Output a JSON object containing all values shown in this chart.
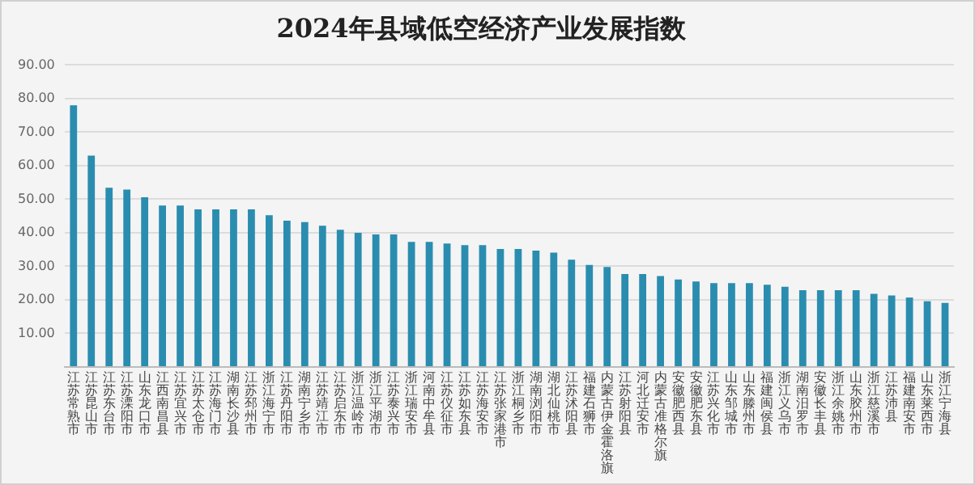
{
  "chart_data": {
    "type": "bar",
    "title": "2024年县域低空经济产业发展指数",
    "categories": [
      "江苏常熟市",
      "江苏昆山市",
      "江苏东台市",
      "江苏溧阳市",
      "山东龙口市",
      "江西南昌县",
      "江苏宜兴市",
      "江苏太仓市",
      "江苏海门市",
      "湖南长沙县",
      "江苏邳州市",
      "浙江海宁市",
      "江苏丹阳市",
      "湖南宁乡市",
      "江苏靖江市",
      "江苏启东市",
      "浙江温岭市",
      "浙江平湖市",
      "江苏泰兴市",
      "浙江瑞安市",
      "河南中牟县",
      "江苏仪征市",
      "江苏如东县",
      "江苏海安市",
      "江苏张家港市",
      "浙江桐乡市",
      "湖南浏阳市",
      "湖北仙桃市",
      "江苏沭阳县",
      "福建石狮市",
      "内蒙古伊金霍洛旗",
      "江苏射阳县",
      "河北迁安市",
      "内蒙古准格尔旗",
      "安徽肥西县",
      "安徽肥东县",
      "江苏兴化市",
      "山东邹城市",
      "山东滕州市",
      "福建闽侯县",
      "浙江义乌市",
      "湖南汨罗市",
      "安徽长丰县",
      "浙江余姚市",
      "山东胶州市",
      "浙江慈溪市",
      "江苏沛县",
      "福建南安市",
      "山东莱西市",
      "浙江宁海县"
    ],
    "values": [
      78.0,
      63.0,
      53.4,
      52.9,
      50.6,
      48.1,
      48.1,
      47.0,
      47.0,
      47.0,
      47.0,
      45.2,
      43.6,
      43.2,
      42.1,
      40.9,
      40.0,
      39.5,
      39.5,
      37.3,
      37.3,
      36.8,
      36.3,
      36.3,
      35.2,
      35.2,
      34.7,
      34.1,
      32.0,
      30.4,
      29.8,
      27.7,
      27.7,
      27.1,
      26.1,
      25.5,
      25.0,
      25.0,
      25.0,
      24.5,
      23.9,
      22.9,
      22.9,
      22.9,
      22.9,
      21.8,
      21.3,
      20.7,
      19.6,
      19.1
    ],
    "color": "#2a8db0",
    "ylim": [
      0,
      90
    ],
    "yticks": [
      {
        "value": 0,
        "label": null
      },
      {
        "value": 10,
        "label": "10.00"
      },
      {
        "value": 20,
        "label": "20.00"
      },
      {
        "value": 30,
        "label": "30.00"
      },
      {
        "value": 40,
        "label": "40.00"
      },
      {
        "value": 50,
        "label": "50.00"
      },
      {
        "value": 60,
        "label": "60.00"
      },
      {
        "value": 70,
        "label": "70.00"
      },
      {
        "value": 80,
        "label": "80.00"
      },
      {
        "value": 90,
        "label": "90.00"
      }
    ],
    "grid": "y",
    "legend": false
  }
}
